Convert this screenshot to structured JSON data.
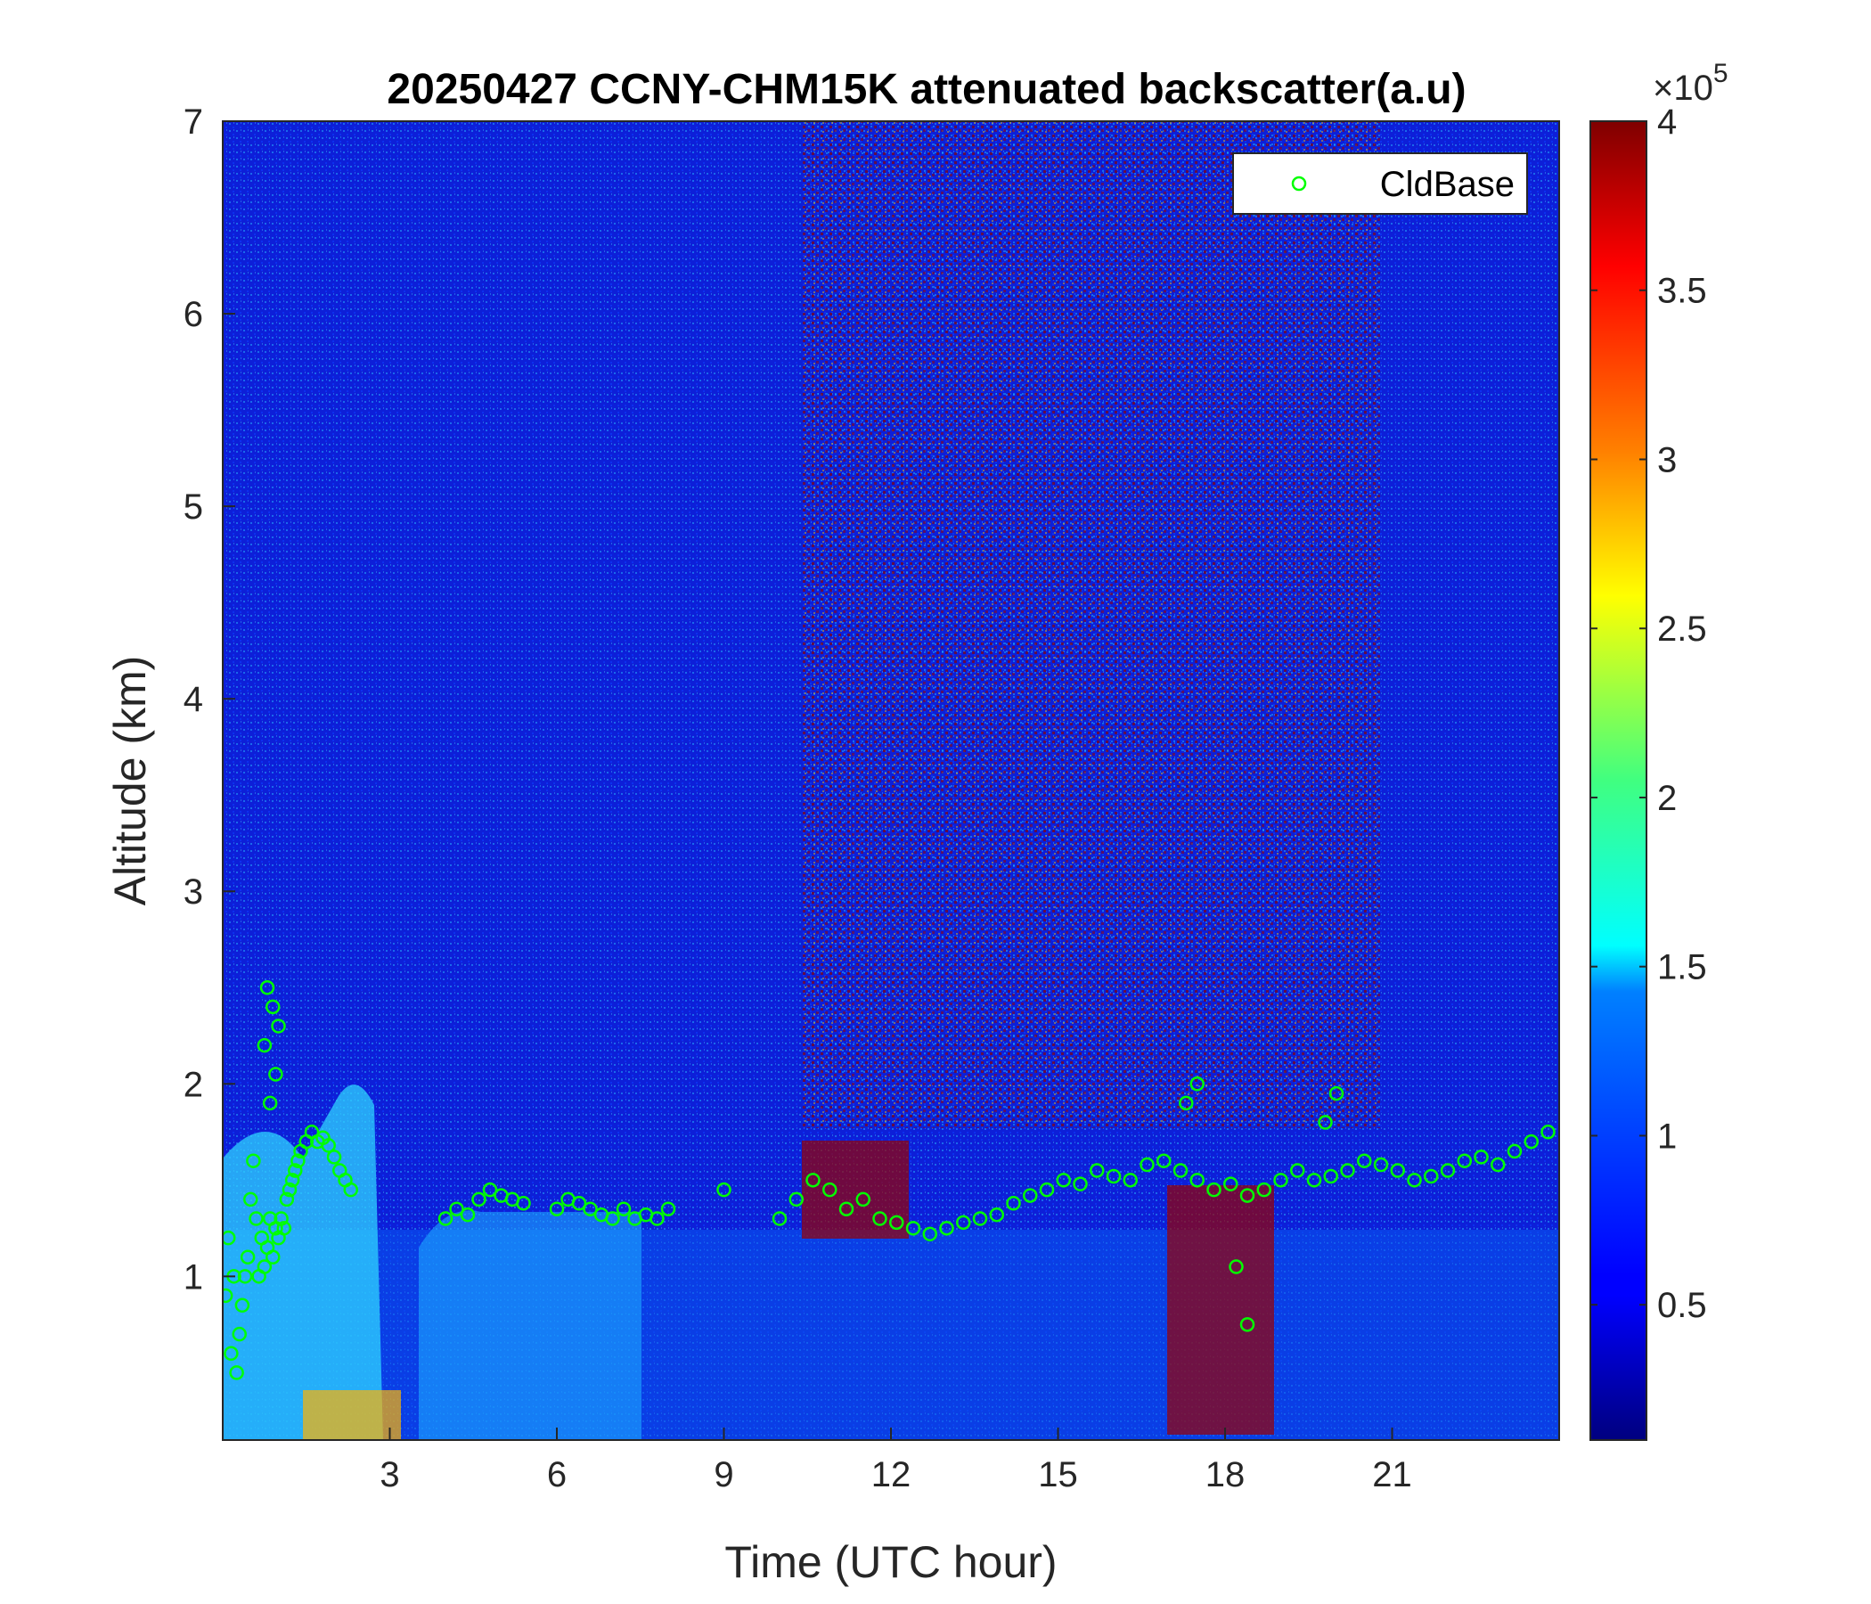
{
  "chart_data": {
    "type": "heatmap",
    "title": "20250427 CCNY-CHM15K attenuated backscatter(a.u)",
    "xlabel": "Time (UTC hour)",
    "ylabel": "Altitude (km)",
    "xlim": [
      0,
      24
    ],
    "ylim": [
      0.15,
      7
    ],
    "xticks": [
      "3",
      "6",
      "9",
      "12",
      "15",
      "18",
      "21"
    ],
    "yticks": [
      "1",
      "2",
      "3",
      "4",
      "5",
      "6",
      "7"
    ],
    "colorbar": {
      "colormap": "jet",
      "clim": [
        0.1,
        4
      ],
      "ticks": [
        "0.5",
        "1",
        "1.5",
        "2",
        "2.5",
        "3",
        "3.5",
        "4"
      ],
      "multiplier_base": "×10",
      "multiplier_exp": "5"
    },
    "legend": {
      "location": "top-right",
      "entries": [
        {
          "label": "CldBase",
          "marker": "circle",
          "color": "#00ff00"
        }
      ]
    },
    "series": [
      {
        "name": "CldBase",
        "type": "scatter",
        "color": "#00ff00",
        "x": [
          0.05,
          0.1,
          0.15,
          0.2,
          0.25,
          0.3,
          0.35,
          0.4,
          0.45,
          0.5,
          0.55,
          0.6,
          0.65,
          0.7,
          0.75,
          0.8,
          0.85,
          0.9,
          0.95,
          1.0,
          1.05,
          1.1,
          1.15,
          1.2,
          1.25,
          1.3,
          1.35,
          1.4,
          1.5,
          1.6,
          1.7,
          1.8,
          1.9,
          2.0,
          2.1,
          2.2,
          2.3,
          0.75,
          0.8,
          0.9,
          1.0,
          0.85,
          0.95,
          4.0,
          4.2,
          4.4,
          4.6,
          4.8,
          5.0,
          5.2,
          5.4,
          6.0,
          6.2,
          6.4,
          6.6,
          6.8,
          7.0,
          7.2,
          7.4,
          7.6,
          7.8,
          8.0,
          9.0,
          10.0,
          10.3,
          10.6,
          10.9,
          11.2,
          11.5,
          11.8,
          12.1,
          12.4,
          12.7,
          13.0,
          13.3,
          13.6,
          13.9,
          14.2,
          14.5,
          14.8,
          15.1,
          15.4,
          15.7,
          16.0,
          16.3,
          16.6,
          16.9,
          17.2,
          17.5,
          17.8,
          18.1,
          18.4,
          18.7,
          19.0,
          19.3,
          19.6,
          19.9,
          20.2,
          20.5,
          20.8,
          21.1,
          21.4,
          21.7,
          22.0,
          22.3,
          22.6,
          22.9,
          23.2,
          23.5,
          23.8,
          17.3,
          17.5,
          18.2,
          18.4,
          19.8,
          20.0
        ],
        "y": [
          0.9,
          1.2,
          0.6,
          1.0,
          0.5,
          0.7,
          0.85,
          1.0,
          1.1,
          1.4,
          1.6,
          1.3,
          1.0,
          1.2,
          1.05,
          1.15,
          1.3,
          1.1,
          1.25,
          1.2,
          1.3,
          1.25,
          1.4,
          1.45,
          1.5,
          1.55,
          1.6,
          1.65,
          1.7,
          1.75,
          1.7,
          1.72,
          1.68,
          1.62,
          1.55,
          1.5,
          1.45,
          2.2,
          2.5,
          2.4,
          2.3,
          1.9,
          2.05,
          1.3,
          1.35,
          1.32,
          1.4,
          1.45,
          1.42,
          1.4,
          1.38,
          1.35,
          1.4,
          1.38,
          1.35,
          1.32,
          1.3,
          1.35,
          1.3,
          1.32,
          1.3,
          1.35,
          1.45,
          1.3,
          1.4,
          1.5,
          1.45,
          1.35,
          1.4,
          1.3,
          1.28,
          1.25,
          1.22,
          1.25,
          1.28,
          1.3,
          1.32,
          1.38,
          1.42,
          1.45,
          1.5,
          1.48,
          1.55,
          1.52,
          1.5,
          1.58,
          1.6,
          1.55,
          1.5,
          1.45,
          1.48,
          1.42,
          1.45,
          1.5,
          1.55,
          1.5,
          1.52,
          1.55,
          1.6,
          1.58,
          1.55,
          1.5,
          1.52,
          1.55,
          1.6,
          1.62,
          1.58,
          1.65,
          1.7,
          1.75,
          1.9,
          2.0,
          1.05,
          0.75,
          1.8,
          1.95
        ]
      }
    ]
  }
}
